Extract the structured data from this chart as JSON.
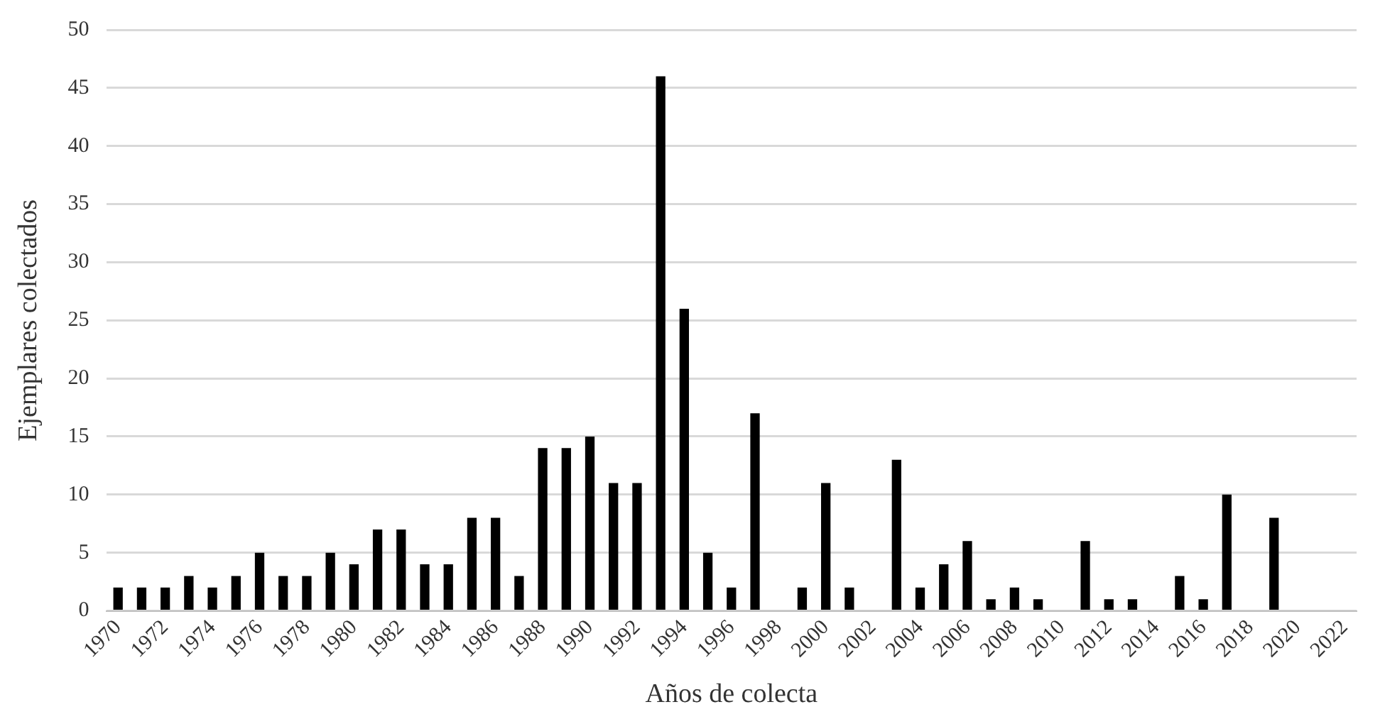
{
  "chart_data": {
    "type": "bar",
    "xlabel": "Años de colecta",
    "ylabel": "Ejemplares colectados",
    "categories": [
      "1970",
      null,
      "1972",
      null,
      "1974",
      null,
      "1976",
      null,
      "1978",
      null,
      "1980",
      null,
      "1982",
      null,
      "1984",
      null,
      "1986",
      null,
      "1988",
      null,
      "1990",
      null,
      "1992",
      null,
      "1994",
      null,
      "1996",
      null,
      "1998",
      null,
      "2000",
      null,
      "2002",
      null,
      "2004",
      null,
      "2006",
      null,
      "2008",
      null,
      "2010",
      null,
      "2012",
      null,
      "2014",
      null,
      "2016",
      null,
      "2018",
      null,
      "2020",
      null,
      "2022"
    ],
    "values": [
      2,
      2,
      2,
      3,
      2,
      3,
      5,
      3,
      3,
      5,
      4,
      7,
      7,
      4,
      4,
      8,
      8,
      3,
      14,
      14,
      15,
      11,
      11,
      46,
      26,
      5,
      2,
      17,
      0,
      2,
      11,
      2,
      0,
      13,
      2,
      4,
      6,
      1,
      2,
      1,
      0,
      6,
      1,
      1,
      0,
      3,
      1,
      10,
      0,
      8,
      0,
      0,
      0
    ],
    "color": "#000000",
    "ylim": [
      0,
      50
    ],
    "yticks": [
      0,
      5,
      10,
      15,
      20,
      25,
      30,
      35,
      40,
      45,
      50
    ],
    "grid": "y"
  }
}
